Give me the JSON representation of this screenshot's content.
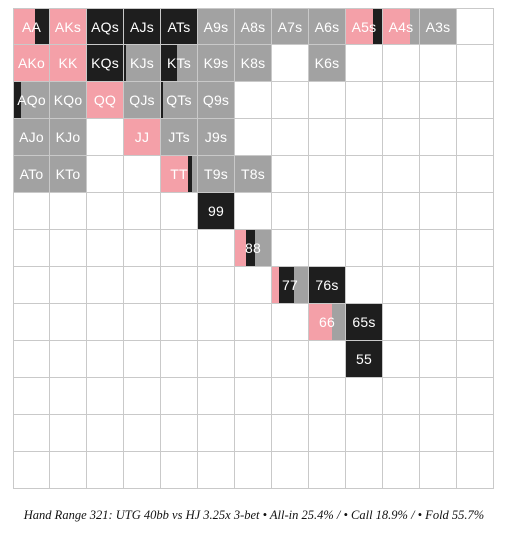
{
  "colors": {
    "allin": "#f4a0a8",
    "call": "#1e1e1e",
    "fold": "#a2a2a2",
    "empty": "#ffffff",
    "gridline": "#c9c9c9"
  },
  "caption": "Hand Range 321: UTG 40bb vs HJ 3.25x 3-bet • All-in 25.4% / • Call 18.9% / • Fold 55.7%",
  "grid": {
    "rows": 13,
    "cols": 13,
    "hands": [
      {
        "label": "AA",
        "row": 0,
        "col": 0,
        "allin": 0.6,
        "call": 0.4,
        "fold": 0
      },
      {
        "label": "AKs",
        "row": 0,
        "col": 1,
        "allin": 1,
        "call": 0,
        "fold": 0
      },
      {
        "label": "AQs",
        "row": 0,
        "col": 2,
        "allin": 0,
        "call": 1,
        "fold": 0
      },
      {
        "label": "AJs",
        "row": 0,
        "col": 3,
        "allin": 0,
        "call": 1,
        "fold": 0
      },
      {
        "label": "ATs",
        "row": 0,
        "col": 4,
        "allin": 0,
        "call": 1,
        "fold": 0
      },
      {
        "label": "A9s",
        "row": 0,
        "col": 5,
        "allin": 0,
        "call": 0,
        "fold": 1
      },
      {
        "label": "A8s",
        "row": 0,
        "col": 6,
        "allin": 0,
        "call": 0,
        "fold": 1
      },
      {
        "label": "A7s",
        "row": 0,
        "col": 7,
        "allin": 0,
        "call": 0,
        "fold": 1
      },
      {
        "label": "A6s",
        "row": 0,
        "col": 8,
        "allin": 0,
        "call": 0,
        "fold": 1
      },
      {
        "label": "A5s",
        "row": 0,
        "col": 9,
        "allin": 0.75,
        "call": 0.25,
        "fold": 0
      },
      {
        "label": "A4s",
        "row": 0,
        "col": 10,
        "allin": 0.75,
        "call": 0,
        "fold": 0.25
      },
      {
        "label": "A3s",
        "row": 0,
        "col": 11,
        "allin": 0,
        "call": 0,
        "fold": 1
      },
      {
        "label": "AKo",
        "row": 1,
        "col": 0,
        "allin": 1,
        "call": 0,
        "fold": 0
      },
      {
        "label": "KK",
        "row": 1,
        "col": 1,
        "allin": 1,
        "call": 0,
        "fold": 0
      },
      {
        "label": "KQs",
        "row": 1,
        "col": 2,
        "allin": 0,
        "call": 1,
        "fold": 0
      },
      {
        "label": "KJs",
        "row": 1,
        "col": 3,
        "allin": 0,
        "call": 0.05,
        "fold": 0.95
      },
      {
        "label": "KTs",
        "row": 1,
        "col": 4,
        "allin": 0,
        "call": 0.45,
        "fold": 0.55
      },
      {
        "label": "K9s",
        "row": 1,
        "col": 5,
        "allin": 0,
        "call": 0,
        "fold": 1
      },
      {
        "label": "K8s",
        "row": 1,
        "col": 6,
        "allin": 0,
        "call": 0,
        "fold": 1
      },
      {
        "label": "K6s",
        "row": 1,
        "col": 8,
        "allin": 0,
        "call": 0,
        "fold": 1
      },
      {
        "label": "AQo",
        "row": 2,
        "col": 0,
        "allin": 0,
        "call": 0.2,
        "fold": 0.8
      },
      {
        "label": "KQo",
        "row": 2,
        "col": 1,
        "allin": 0,
        "call": 0,
        "fold": 1
      },
      {
        "label": "QQ",
        "row": 2,
        "col": 2,
        "allin": 1,
        "call": 0,
        "fold": 0
      },
      {
        "label": "QJs",
        "row": 2,
        "col": 3,
        "allin": 0,
        "call": 0,
        "fold": 1
      },
      {
        "label": "QTs",
        "row": 2,
        "col": 4,
        "allin": 0,
        "call": 0.05,
        "fold": 0.95
      },
      {
        "label": "Q9s",
        "row": 2,
        "col": 5,
        "allin": 0,
        "call": 0,
        "fold": 1
      },
      {
        "label": "AJo",
        "row": 3,
        "col": 0,
        "allin": 0,
        "call": 0,
        "fold": 1
      },
      {
        "label": "KJo",
        "row": 3,
        "col": 1,
        "allin": 0,
        "call": 0,
        "fold": 1
      },
      {
        "label": "JJ",
        "row": 3,
        "col": 3,
        "allin": 1,
        "call": 0,
        "fold": 0
      },
      {
        "label": "JTs",
        "row": 3,
        "col": 4,
        "allin": 0,
        "call": 0,
        "fold": 1
      },
      {
        "label": "J9s",
        "row": 3,
        "col": 5,
        "allin": 0,
        "call": 0,
        "fold": 1
      },
      {
        "label": "ATo",
        "row": 4,
        "col": 0,
        "allin": 0,
        "call": 0,
        "fold": 1
      },
      {
        "label": "KTo",
        "row": 4,
        "col": 1,
        "allin": 0,
        "call": 0,
        "fold": 1
      },
      {
        "label": "TT",
        "row": 4,
        "col": 4,
        "allin": 0.75,
        "call": 0.1,
        "fold": 0.15
      },
      {
        "label": "T9s",
        "row": 4,
        "col": 5,
        "allin": 0,
        "call": 0,
        "fold": 1
      },
      {
        "label": "T8s",
        "row": 4,
        "col": 6,
        "allin": 0,
        "call": 0,
        "fold": 1
      },
      {
        "label": "99",
        "row": 5,
        "col": 5,
        "allin": 0,
        "call": 1,
        "fold": 0
      },
      {
        "label": "88",
        "row": 6,
        "col": 6,
        "allin": 0.3,
        "call": 0.25,
        "fold": 0.45
      },
      {
        "label": "77",
        "row": 7,
        "col": 7,
        "allin": 0.2,
        "call": 0.4,
        "fold": 0.4
      },
      {
        "label": "76s",
        "row": 7,
        "col": 8,
        "allin": 0,
        "call": 1,
        "fold": 0
      },
      {
        "label": "66",
        "row": 8,
        "col": 8,
        "allin": 0.65,
        "call": 0,
        "fold": 0.35
      },
      {
        "label": "65s",
        "row": 8,
        "col": 9,
        "allin": 0,
        "call": 1,
        "fold": 0
      },
      {
        "label": "55",
        "row": 9,
        "col": 9,
        "allin": 0,
        "call": 1,
        "fold": 0
      }
    ]
  }
}
